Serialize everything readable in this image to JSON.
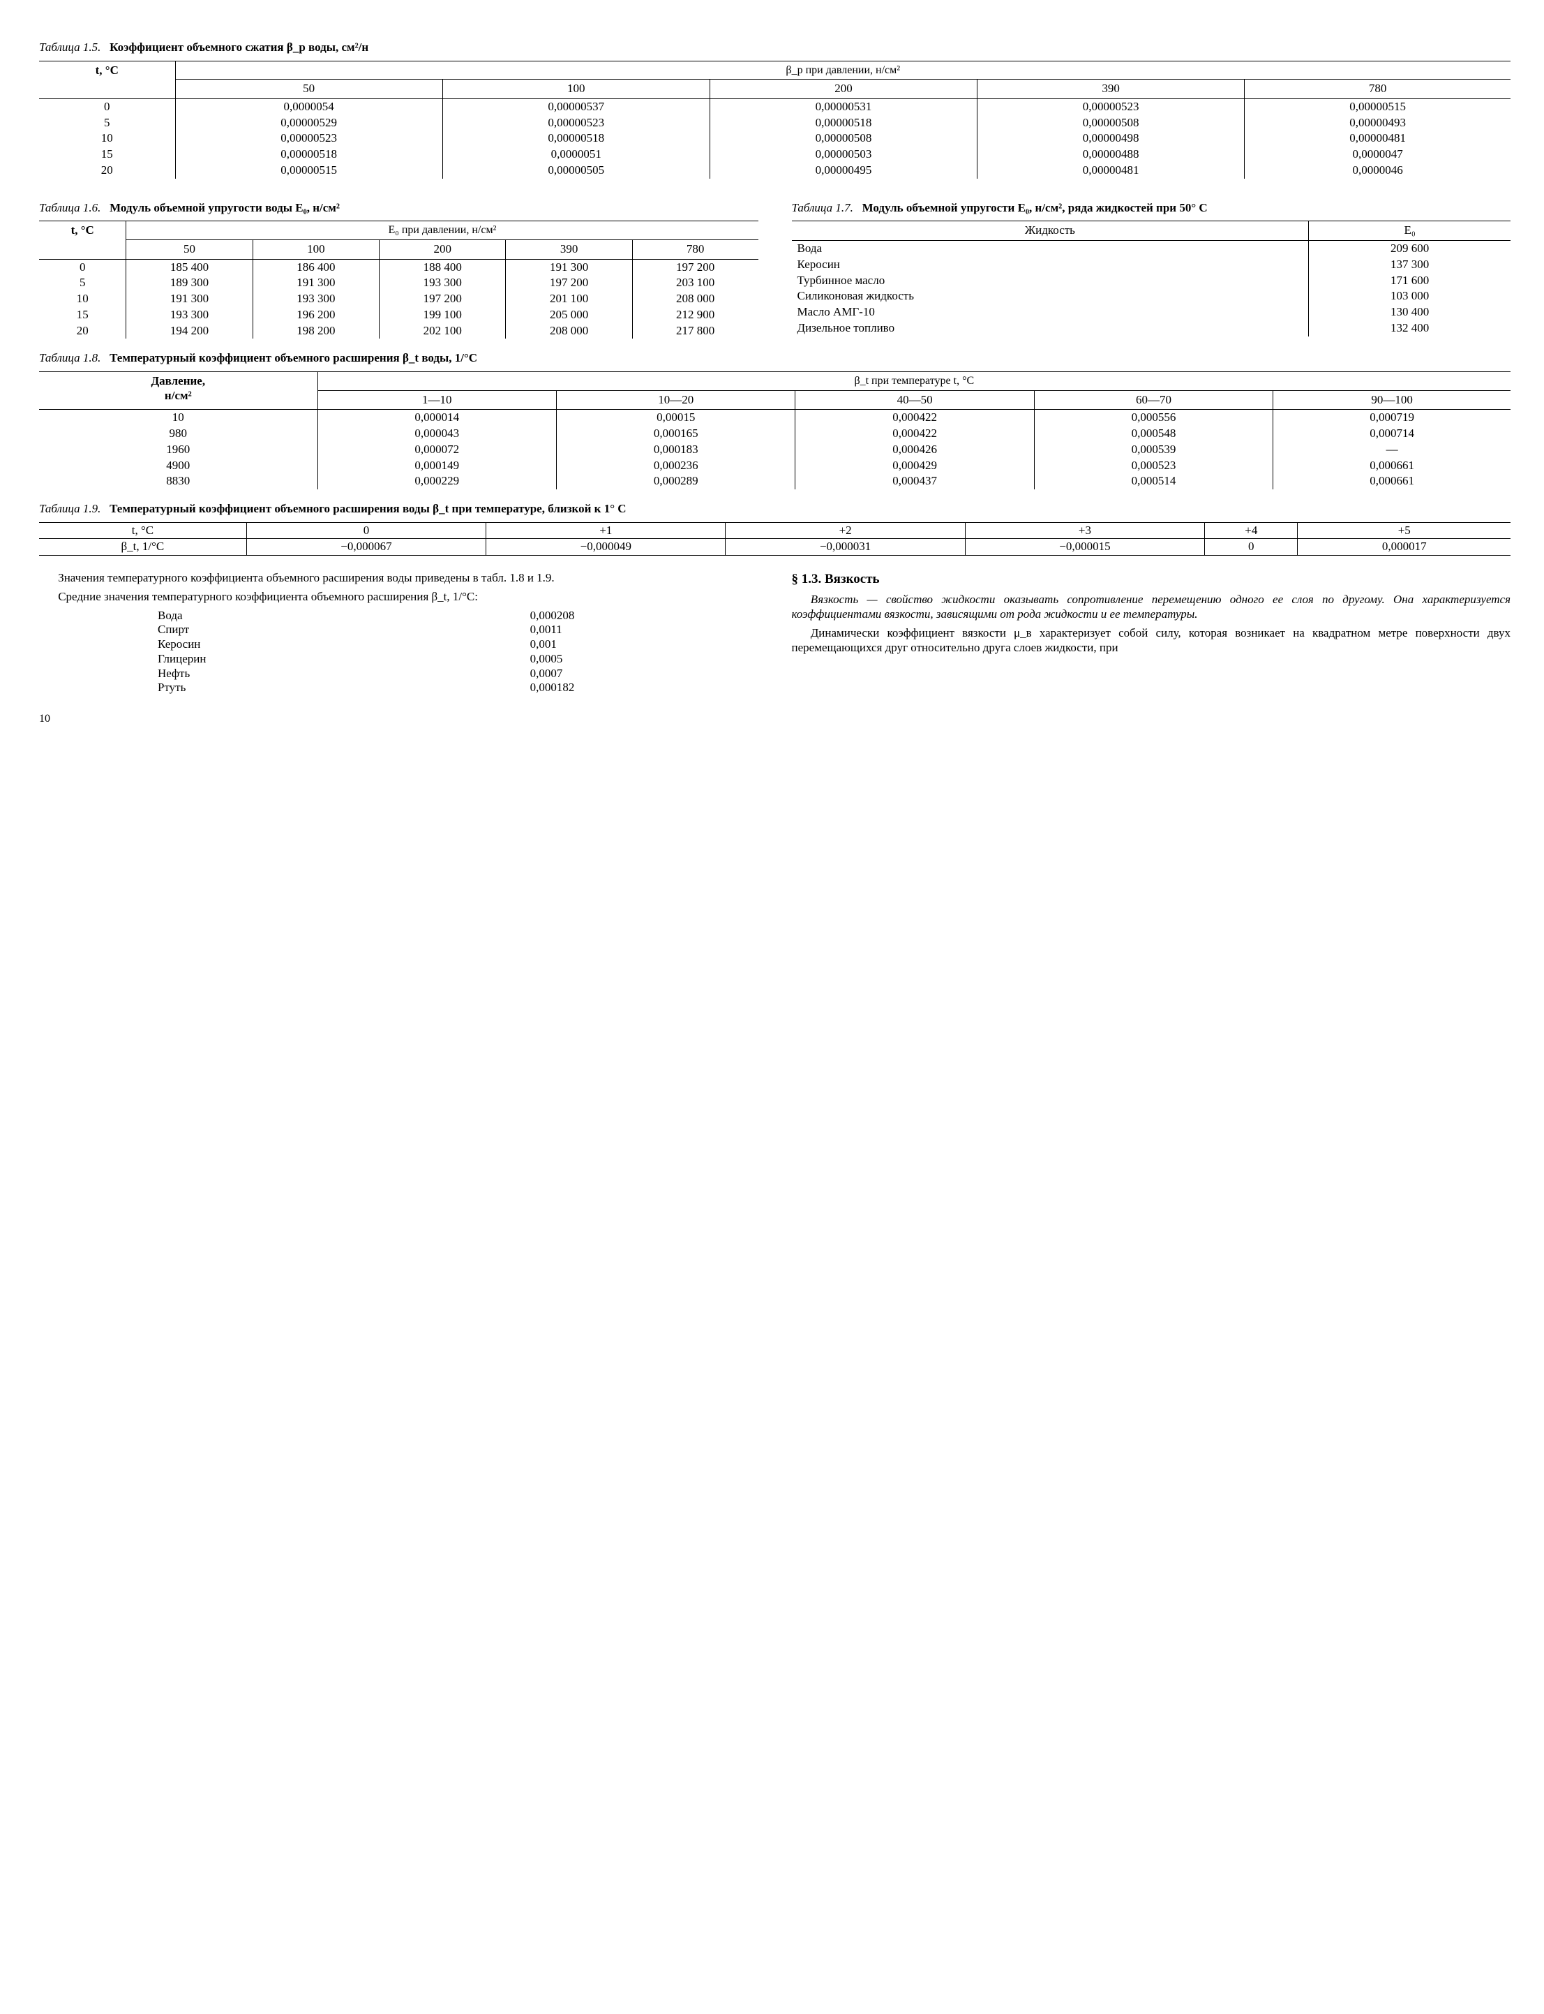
{
  "t15": {
    "caption_label": "Таблица 1.5.",
    "caption_title": "Коэффициент объемного сжатия β_p воды, см²/н",
    "col_header_left": "t, °C",
    "span_header": "β_p при давлении, н/см²",
    "pressures": [
      "50",
      "100",
      "200",
      "390",
      "780"
    ],
    "temps": [
      "0",
      "5",
      "10",
      "15",
      "20"
    ],
    "rows": [
      [
        "0,0000054",
        "0,00000537",
        "0,00000531",
        "0,00000523",
        "0,00000515"
      ],
      [
        "0,00000529",
        "0,00000523",
        "0,00000518",
        "0,00000508",
        "0,00000493"
      ],
      [
        "0,00000523",
        "0,00000518",
        "0,00000508",
        "0,00000498",
        "0,00000481"
      ],
      [
        "0,00000518",
        "0,0000051",
        "0,00000503",
        "0,00000488",
        "0,0000047"
      ],
      [
        "0,00000515",
        "0,00000505",
        "0,00000495",
        "0,00000481",
        "0,0000046"
      ]
    ]
  },
  "t16": {
    "caption_label": "Таблица 1.6.",
    "caption_title": "Модуль объемной упругости воды E₀, н/см²",
    "col_header_left": "t, °C",
    "span_header": "E₀ при давлении, н/см²",
    "pressures": [
      "50",
      "100",
      "200",
      "390",
      "780"
    ],
    "temps": [
      "0",
      "5",
      "10",
      "15",
      "20"
    ],
    "rows": [
      [
        "185 400",
        "186 400",
        "188 400",
        "191 300",
        "197 200"
      ],
      [
        "189 300",
        "191 300",
        "193 300",
        "197 200",
        "203 100"
      ],
      [
        "191 300",
        "193 300",
        "197 200",
        "201 100",
        "208 000"
      ],
      [
        "193 300",
        "196 200",
        "199 100",
        "205 000",
        "212 900"
      ],
      [
        "194 200",
        "198 200",
        "202 100",
        "208 000",
        "217 800"
      ]
    ]
  },
  "t17": {
    "caption_label": "Таблица 1.7.",
    "caption_title": "Модуль объемной упругости E₀, н/см², ряда жидкостей при 50° С",
    "col_liquid": "Жидкость",
    "col_e0": "E₀",
    "rows": [
      [
        "Вода",
        "209 600"
      ],
      [
        "Керосин",
        "137 300"
      ],
      [
        "Турбинное масло",
        "171 600"
      ],
      [
        "Силиконовая жидкость",
        "103 000"
      ],
      [
        "Масло АМГ-10",
        "130 400"
      ],
      [
        "Дизельное топливо",
        "132 400"
      ]
    ]
  },
  "t18": {
    "caption_label": "Таблица 1.8.",
    "caption_title": "Температурный коэффициент объемного расширения β_t воды, 1/°С",
    "col_header_left": "Давление,\nн/см²",
    "span_header": "β_t при температуре t, °С",
    "ranges": [
      "1—10",
      "10—20",
      "40—50",
      "60—70",
      "90—100"
    ],
    "pressures": [
      "10",
      "980",
      "1960",
      "4900",
      "8830"
    ],
    "rows": [
      [
        "0,000014",
        "0,00015",
        "0,000422",
        "0,000556",
        "0,000719"
      ],
      [
        "0,000043",
        "0,000165",
        "0,000422",
        "0,000548",
        "0,000714"
      ],
      [
        "0,000072",
        "0,000183",
        "0,000426",
        "0,000539",
        "—"
      ],
      [
        "0,000149",
        "0,000236",
        "0,000429",
        "0,000523",
        "0,000661"
      ],
      [
        "0,000229",
        "0,000289",
        "0,000437",
        "0,000514",
        "0,000661"
      ]
    ]
  },
  "t19": {
    "caption_label": "Таблица 1.9.",
    "caption_title": "Температурный коэффициент объемного расширения воды β_t при температуре, близкой к 1° С",
    "row1_label": "t, °С",
    "row2_label": "β_t, 1/°С",
    "temps": [
      "0",
      "+1",
      "+2",
      "+3",
      "+4",
      "+5"
    ],
    "vals": [
      "−0,000067",
      "−0,000049",
      "−0,000031",
      "−0,000015",
      "0",
      "0,000017"
    ]
  },
  "body": {
    "p1": "Значения температурного коэффициента объемного расширения воды приведены в табл. 1.8 и 1.9.",
    "p2": "Средние значения температурного коэффициента объемного расширения β_t, 1/°С:",
    "mini_rows": [
      [
        "Вода",
        "0,000208"
      ],
      [
        "Спирт",
        "0,0011"
      ],
      [
        "Керосин",
        "0,001"
      ],
      [
        "Глицерин",
        "0,0005"
      ],
      [
        "Нефть",
        "0,0007"
      ],
      [
        "Ртуть",
        "0,000182"
      ]
    ],
    "h3": "§ 1.3. Вязкость",
    "p3": "Вязкость — свойство жидкости оказывать сопротивление перемещению одного ее слоя по другому. Она характеризуется коэффициентами вязкости, зависящими от рода жидкости и ее температуры.",
    "p4": "Динамически коэффициент вязкости μ_в характеризует собой силу, которая возникает на квадратном метре поверхности двух перемещающихся друг относительно друга слоев жидкости, при"
  },
  "page_number": "10"
}
